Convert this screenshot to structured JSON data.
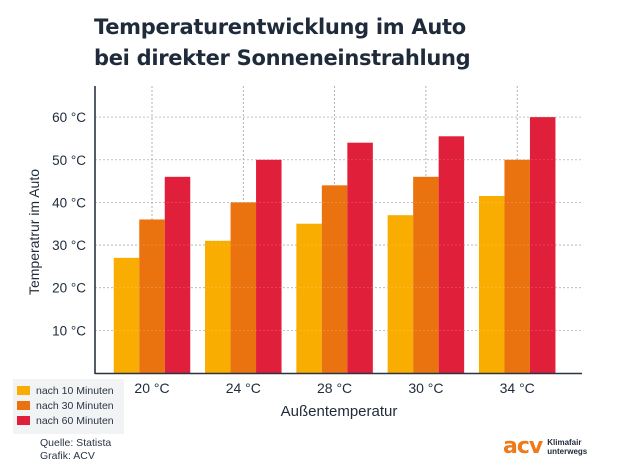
{
  "title_lines": [
    "Temperaturentwicklung im Auto",
    "bei direkter Sonneneinstrahlung"
  ],
  "chart_data": {
    "type": "bar",
    "title": "Temperaturentwicklung im Auto bei direkter Sonneneinstrahlung",
    "xlabel": "Außentemperatur",
    "ylabel": "Temperatrur im Auto",
    "categories": [
      "20 °C",
      "24 °C",
      "28 °C",
      "30 °C",
      "34 °C"
    ],
    "series": [
      {
        "name": "nach 10 Minuten",
        "color": "#f8ad00",
        "values": [
          27,
          31,
          35,
          37,
          41.5
        ]
      },
      {
        "name": "nach 30 Minuten",
        "color": "#ea730f",
        "values": [
          36,
          40,
          44,
          46,
          50
        ]
      },
      {
        "name": "nach 60 Minuten",
        "color": "#e01f3a",
        "values": [
          46,
          50,
          54,
          55.5,
          60
        ]
      }
    ],
    "ylim": [
      0,
      65
    ],
    "yticks": [
      10,
      20,
      30,
      40,
      50,
      60
    ],
    "ytick_labels": [
      "10 °C",
      "20 °C",
      "30 °C",
      "40 °C",
      "50 °C",
      "60 °C"
    ],
    "grid": true,
    "legend_position": "bottom-left"
  },
  "footer": {
    "source": "Quelle: Statista",
    "graphic": "Grafik: ACV"
  },
  "logo": {
    "mark": "acv",
    "tagline_1": "Klimafair",
    "tagline_2": "unterwegs"
  }
}
